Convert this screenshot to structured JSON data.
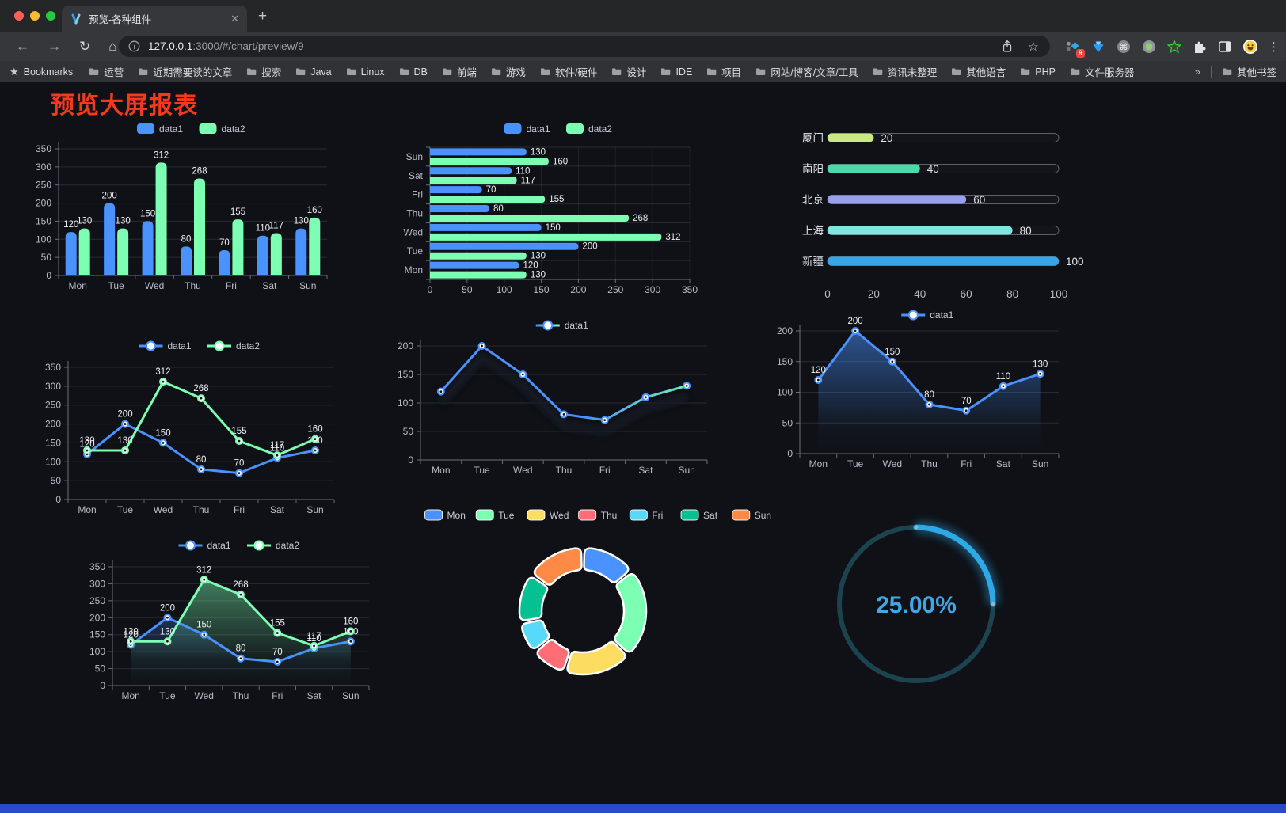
{
  "browser": {
    "tab_title": "预览-各种组件",
    "url_host": "127.0.0.1",
    "url_rest": ":3000/#/chart/preview/9",
    "bookmarks_label": "Bookmarks",
    "bookmark_folders": [
      "运营",
      "近期需要读的文章",
      "搜索",
      "Java",
      "Linux",
      "DB",
      "前端",
      "游戏",
      "软件/硬件",
      "设计",
      "IDE",
      "项目",
      "网站/博客/文章/工具",
      "资讯未整理",
      "其他语言",
      "PHP",
      "文件服务器"
    ],
    "bookmarks_overflow": "»",
    "other_bookmarks": "其他书签",
    "extension_badge": "9"
  },
  "page": {
    "title": "预览大屏报表",
    "title_color": "#f5391c",
    "footer_color": "#2b4acb",
    "background": "#0f1116"
  },
  "chart_data": [
    {
      "id": "bar-grouped",
      "type": "bar",
      "categories": [
        "Mon",
        "Tue",
        "Wed",
        "Thu",
        "Fri",
        "Sat",
        "Sun"
      ],
      "series": [
        {
          "name": "data1",
          "color": "#4992ff",
          "values": [
            120,
            200,
            150,
            80,
            70,
            110,
            130
          ]
        },
        {
          "name": "data2",
          "color": "#7cffb2",
          "values": [
            130,
            130,
            312,
            268,
            155,
            117,
            160
          ]
        }
      ],
      "ylim": [
        0,
        350
      ],
      "ystep": 50,
      "legend_position": "top",
      "grid": true
    },
    {
      "id": "bar-horizontal",
      "type": "bar",
      "orientation": "horizontal",
      "categories_top_to_bottom": [
        "Sun",
        "Sat",
        "Fri",
        "Thu",
        "Wed",
        "Tue",
        "Mon"
      ],
      "series": [
        {
          "name": "data1",
          "color": "#4992ff",
          "values": [
            130,
            110,
            70,
            80,
            150,
            200,
            120
          ]
        },
        {
          "name": "data2",
          "color": "#7cffb2",
          "values": [
            160,
            117,
            155,
            268,
            312,
            130,
            130
          ]
        }
      ],
      "xlim": [
        0,
        350
      ],
      "xstep": 50,
      "legend_position": "top",
      "grid": true
    },
    {
      "id": "progress-list",
      "type": "bar",
      "orientation": "horizontal-progress",
      "rows": [
        {
          "label": "厦门",
          "value": 20,
          "color": "#cbe981"
        },
        {
          "label": "南阳",
          "value": 40,
          "color": "#4bd9ab"
        },
        {
          "label": "北京",
          "value": 60,
          "color": "#989fee"
        },
        {
          "label": "上海",
          "value": 80,
          "color": "#80e5e1"
        },
        {
          "label": "新疆",
          "value": 100,
          "color": "#38a5e6"
        }
      ],
      "xlim": [
        0,
        100
      ],
      "xticks": [
        0,
        20,
        40,
        60,
        80,
        100
      ]
    },
    {
      "id": "line-two-series",
      "type": "line",
      "categories": [
        "Mon",
        "Tue",
        "Wed",
        "Thu",
        "Fri",
        "Sat",
        "Sun"
      ],
      "series": [
        {
          "name": "data1",
          "color": "#4992ff",
          "values": [
            120,
            200,
            150,
            80,
            70,
            110,
            130
          ]
        },
        {
          "name": "data2",
          "color": "#7cffb2",
          "values": [
            130,
            130,
            312,
            268,
            155,
            117,
            160
          ]
        }
      ],
      "ylim": [
        0,
        350
      ],
      "ystep": 50,
      "labels": true,
      "area": false,
      "shadow": false,
      "legend_position": "top"
    },
    {
      "id": "line-gradient",
      "type": "line",
      "categories": [
        "Mon",
        "Tue",
        "Wed",
        "Thu",
        "Fri",
        "Sat",
        "Sun"
      ],
      "series": [
        {
          "name": "data1",
          "color_start": "#4992ff",
          "color_end": "#7cffb2",
          "values": [
            120,
            200,
            150,
            80,
            70,
            110,
            130
          ]
        }
      ],
      "ylim": [
        0,
        200
      ],
      "ystep": 50,
      "labels": false,
      "area": false,
      "shadow": true,
      "legend_position": "top"
    },
    {
      "id": "line-area",
      "type": "area",
      "categories": [
        "Mon",
        "Tue",
        "Wed",
        "Thu",
        "Fri",
        "Sat",
        "Sun"
      ],
      "series": [
        {
          "name": "data1",
          "color": "#4992ff",
          "values": [
            120,
            200,
            150,
            80,
            70,
            110,
            130
          ]
        }
      ],
      "ylim": [
        0,
        200
      ],
      "ystep": 50,
      "labels": true,
      "area": true,
      "shadow": false,
      "legend_position": "top"
    },
    {
      "id": "area-two-series",
      "type": "area",
      "categories": [
        "Mon",
        "Tue",
        "Wed",
        "Thu",
        "Fri",
        "Sat",
        "Sun"
      ],
      "series": [
        {
          "name": "data1",
          "color": "#4992ff",
          "values": [
            120,
            200,
            150,
            80,
            70,
            110,
            130
          ]
        },
        {
          "name": "data2",
          "color": "#7cffb2",
          "values": [
            130,
            130,
            312,
            268,
            155,
            117,
            160
          ]
        }
      ],
      "ylim": [
        0,
        350
      ],
      "ystep": 50,
      "labels": true,
      "area": true,
      "shadow": false,
      "legend_position": "top"
    },
    {
      "id": "donut",
      "type": "pie",
      "categories": [
        "Mon",
        "Tue",
        "Wed",
        "Thu",
        "Fri",
        "Sat",
        "Sun"
      ],
      "values": [
        120,
        200,
        150,
        80,
        70,
        110,
        130
      ],
      "colors": [
        "#4992ff",
        "#7cffb2",
        "#fddd60",
        "#ff6e76",
        "#58d9f9",
        "#05c091",
        "#ff8a45"
      ],
      "legend_position": "top",
      "inner_radius_ratio": 0.65,
      "border_color": "#ffffff"
    },
    {
      "id": "gauge",
      "type": "gauge",
      "value": 25,
      "value_label": "25.00%",
      "color": "#2ea9e8",
      "track_color": "#1c4450",
      "text_color": "#3fa7e6"
    }
  ]
}
